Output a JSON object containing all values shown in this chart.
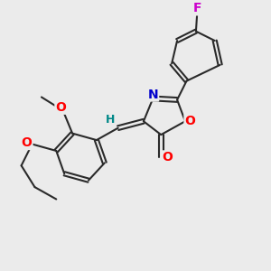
{
  "bg_color": "#ebebeb",
  "bond_color": "#2a2a2a",
  "atom_colors": {
    "O": "#ff0000",
    "N": "#0000cc",
    "F": "#cc00cc",
    "H": "#008888",
    "C": "#2a2a2a"
  },
  "bond_width": 1.5,
  "fig_size": [
    3.0,
    3.0
  ],
  "dpi": 100,
  "xlim": [
    0,
    10
  ],
  "ylim": [
    0,
    10
  ]
}
